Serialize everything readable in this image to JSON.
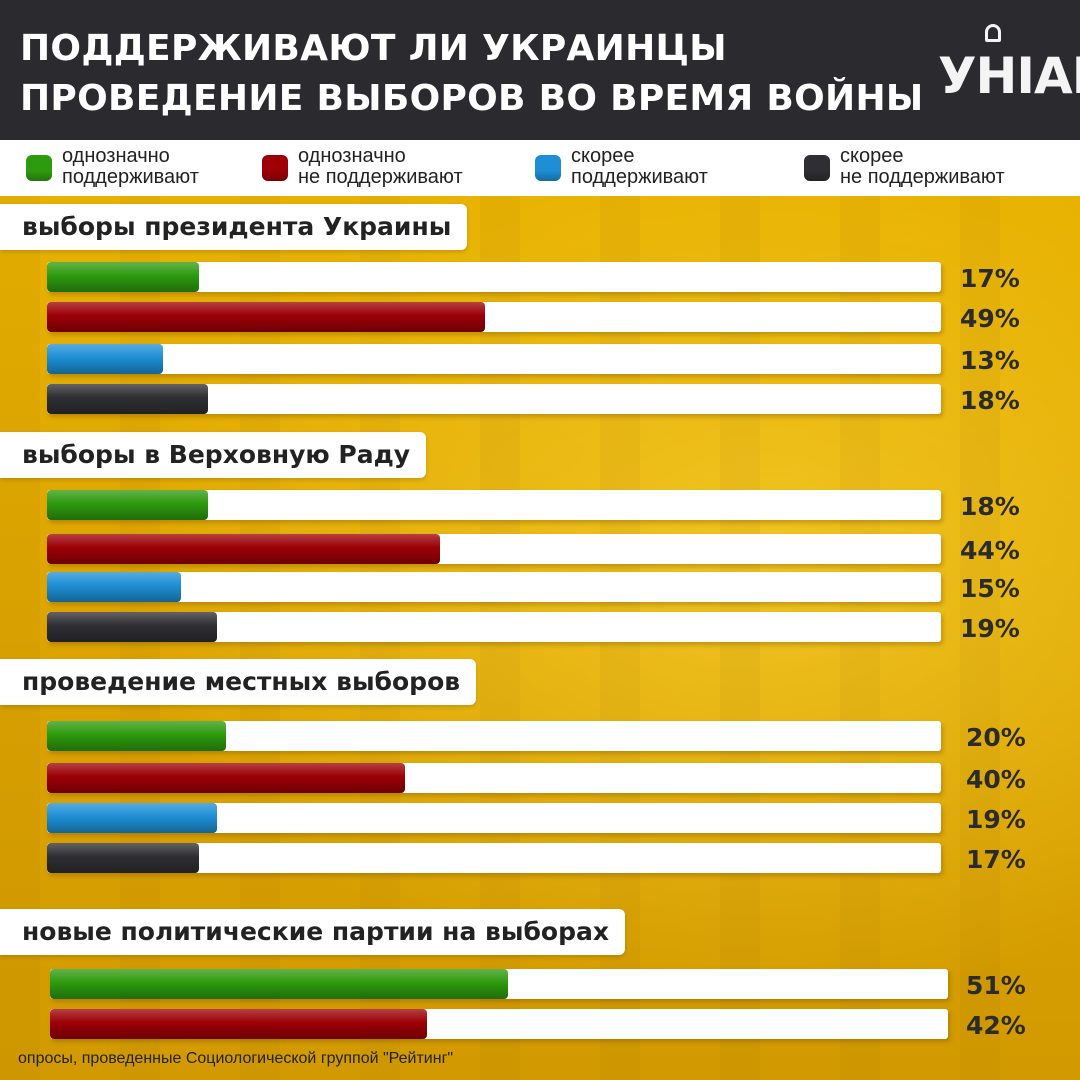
{
  "header": {
    "title_line1": "ПОДДЕРЖИВАЮТ ЛИ УКРАИНЦЫ",
    "title_line2": "ПРОВЕДЕНИЕ ВЫБОРОВ ВО ВРЕМЯ ВОЙНЫ",
    "logo": "УНІАН"
  },
  "legend": [
    {
      "label_line1": "однозначно",
      "label_line2": "поддерживают",
      "color": "#2e9a0e"
    },
    {
      "label_line1": "однозначно",
      "label_line2": "не поддерживают",
      "color": "#9c0006"
    },
    {
      "label_line1": "скорее",
      "label_line2": "поддерживают",
      "color": "#1e8fd4"
    },
    {
      "label_line1": "скорее",
      "label_line2": "не поддерживают",
      "color": "#2f2f33"
    }
  ],
  "colors": {
    "green": "#2e9a0e",
    "red": "#9c0006",
    "blue": "#1e8fd4",
    "dark": "#2f2f33"
  },
  "chart_data": {
    "type": "bar",
    "orientation": "horizontal",
    "unit": "%",
    "xlim": [
      0,
      100
    ],
    "groups": [
      {
        "label": "выборы президента Украины",
        "values": [
          17,
          49,
          13,
          18
        ],
        "labels": [
          "17%",
          "49%",
          "13%",
          "18%"
        ]
      },
      {
        "label": "выборы в Верховную Раду",
        "values": [
          18,
          44,
          15,
          19
        ],
        "labels": [
          "18%",
          "44%",
          "15%",
          "19%"
        ]
      },
      {
        "label": "проведение местных выборов",
        "values": [
          20,
          40,
          19,
          17
        ],
        "labels": [
          "20%",
          "40%",
          "19%",
          "17%"
        ]
      },
      {
        "label": "новые политические партии на выборах",
        "values": [
          51,
          42
        ],
        "labels": [
          "51%",
          "42%"
        ]
      }
    ]
  },
  "footer": {
    "source": "опросы, проведенные Социологической группой \"Рейтинг\""
  }
}
